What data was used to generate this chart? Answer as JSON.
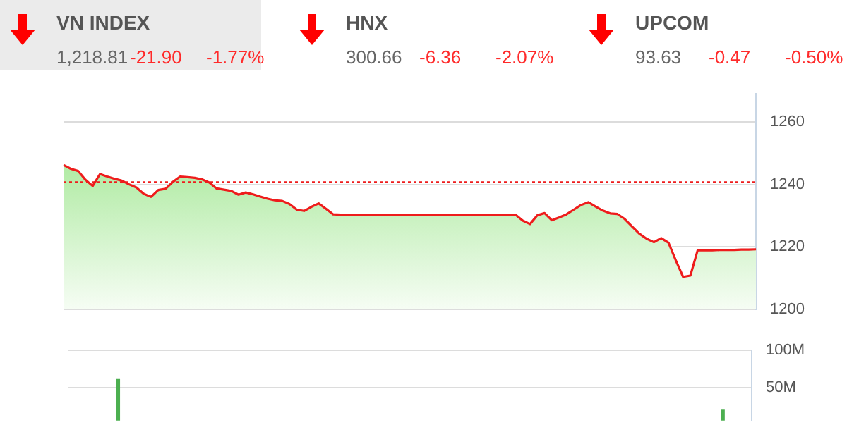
{
  "chart_data": [
    {
      "type": "other",
      "annotations": [
        "VN INDEX",
        "1,218.81",
        "-21.90",
        "-1.77%",
        "HNX",
        "300.66",
        "-6.36",
        "-2.07%",
        "UPCOM",
        "93.63",
        "-0.47",
        "-0.50%"
      ]
    },
    {
      "type": "area",
      "categories": [
        null,
        null,
        null,
        null,
        null,
        null,
        null,
        null,
        null,
        null,
        null,
        null,
        null,
        null,
        null,
        null,
        null,
        null,
        null,
        null,
        null,
        null,
        null,
        null,
        null,
        null,
        null,
        null,
        null,
        null,
        null,
        null,
        null,
        null,
        null,
        null,
        null,
        null,
        null,
        null,
        null,
        null,
        null,
        null,
        null,
        null,
        null,
        null,
        null,
        null,
        null,
        null,
        null,
        null,
        null,
        null,
        null,
        null,
        null,
        null,
        null,
        null,
        null,
        null,
        null,
        null,
        null,
        null,
        null,
        null,
        null,
        null,
        null,
        null,
        null,
        null,
        null,
        null,
        null,
        null,
        null,
        null,
        null,
        null,
        null,
        null,
        null,
        null,
        null,
        null,
        null,
        null,
        null,
        null,
        null,
        null
      ],
      "series": [
        {
          "color": "#ee1c1c",
          "values": [
            1246.2,
            1245,
            1244.3,
            1241.5,
            1239.5,
            1243.3,
            1242.5,
            1241.8,
            1241.2,
            1240,
            1239,
            1237,
            1236,
            1238.2,
            1238.6,
            1240.8,
            1242.5,
            1242.3,
            1242.1,
            1241.6,
            1240.6,
            1238.7,
            1238.3,
            1237.9,
            1236.7,
            1237.4,
            1236.8,
            1236.1,
            1235.4,
            1234.9,
            1234.7,
            1233.7,
            1231.9,
            1231.5,
            1232.8,
            1233.9,
            1232.2,
            1230.4,
            1230.3,
            1230.3,
            1230.3,
            1230.3,
            1230.3,
            1230.3,
            1230.3,
            1230.3,
            1230.3,
            1230.3,
            1230.3,
            1230.3,
            1230.3,
            1230.3,
            1230.3,
            1230.3,
            1230.3,
            1230.3,
            1230.3,
            1230.3,
            1230.3,
            1230.3,
            1230.3,
            1230.3,
            1230.3,
            1228.4,
            1227.3,
            1230.1,
            1230.8,
            1228.5,
            1229.4,
            1230.4,
            1231.9,
            1233.4,
            1234.3,
            1232.9,
            1231.6,
            1230.7,
            1230.5,
            1228.9,
            1226.5,
            1224.2,
            1222.6,
            1221.5,
            1222.8,
            1221.3,
            1215.7,
            1210.4,
            1210.8,
            1218.9,
            1218.9,
            1218.9,
            1219,
            1219,
            1219,
            1219.1,
            1219.1,
            1219.2
          ]
        }
      ],
      "ylim": [
        1200,
        1269
      ],
      "yticks": [
        1200,
        1220,
        1240,
        1260
      ],
      "grid": "y",
      "tick_labels": "y",
      "ref_lines": [
        {
          "axis": "y",
          "value": 1240.7,
          "color": "#ee1c1c",
          "line_style": "dotted"
        }
      ]
    },
    {
      "type": "bar",
      "categories": [
        null,
        null,
        null,
        null,
        null,
        null,
        null,
        null,
        null,
        null,
        null,
        null,
        null,
        null,
        null,
        null,
        null,
        null,
        null,
        null,
        null,
        null,
        null,
        null,
        null,
        null,
        null,
        null,
        null,
        null,
        null,
        null,
        null,
        null,
        null,
        null,
        null,
        null,
        null,
        null,
        null,
        null,
        null,
        null,
        null,
        null,
        null,
        null,
        null,
        null,
        null,
        null,
        null,
        null,
        null,
        null,
        null,
        null,
        null,
        null,
        null,
        null,
        null,
        null,
        null,
        null,
        null,
        null,
        null,
        null,
        null,
        null,
        null,
        null,
        null,
        null,
        null,
        null,
        null,
        null,
        null,
        null,
        null,
        null,
        null,
        null,
        null,
        null,
        null,
        null,
        null,
        null,
        null,
        null,
        null,
        null
      ],
      "series": [
        {
          "color": "#4caf50",
          "values": [
            null,
            null,
            null,
            null,
            null,
            null,
            null,
            61,
            null,
            null,
            null,
            null,
            null,
            null,
            null,
            null,
            null,
            null,
            null,
            null,
            null,
            null,
            null,
            null,
            null,
            null,
            null,
            null,
            null,
            null,
            null,
            null,
            null,
            null,
            null,
            null,
            null,
            null,
            null,
            null,
            null,
            null,
            null,
            null,
            null,
            null,
            null,
            null,
            null,
            null,
            null,
            null,
            null,
            null,
            null,
            null,
            null,
            null,
            null,
            null,
            null,
            null,
            null,
            null,
            null,
            null,
            null,
            null,
            null,
            null,
            null,
            null,
            null,
            null,
            null,
            null,
            null,
            null,
            null,
            null,
            null,
            null,
            null,
            null,
            null,
            null,
            null,
            null,
            null,
            null,
            null,
            20,
            null,
            null,
            null,
            null
          ]
        }
      ],
      "ylim": [
        6,
        100
      ],
      "yticks": [
        {
          "value": 50,
          "label": "50M"
        },
        {
          "value": 100,
          "label": "100M"
        }
      ],
      "grid": "y",
      "tick_labels": "y"
    }
  ]
}
